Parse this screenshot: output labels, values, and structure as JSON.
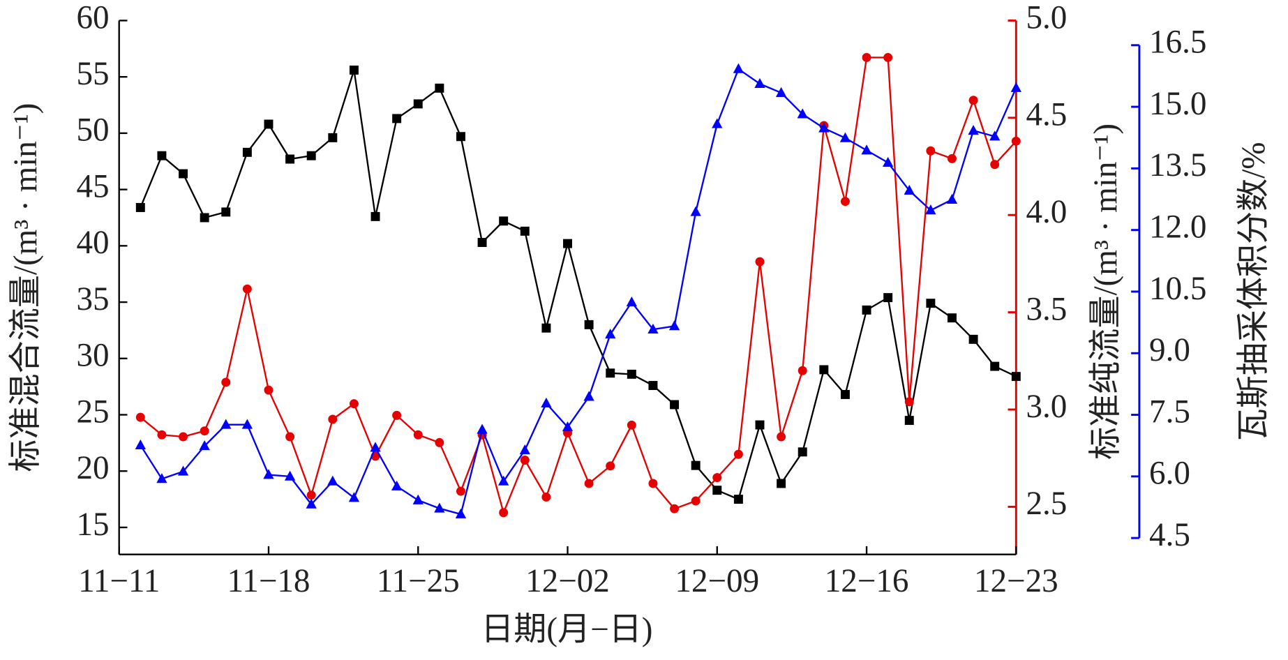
{
  "chart_data": {
    "type": "line",
    "x_label": "日期(月−日)",
    "y_label": "标准混合流量/(m³ · min⁻¹)",
    "y2_label": "标准纯流量/(m³ · min⁻¹)",
    "y3_label": "瓦斯抽采体积分数/%",
    "x": [
      "11−12",
      "11−13",
      "11−14",
      "11−15",
      "11−16",
      "11−17",
      "11−18",
      "11−19",
      "11−20",
      "11−21",
      "11−22",
      "11−23",
      "11−24",
      "11−25",
      "11−26",
      "11−27",
      "11−28",
      "11−29",
      "11−30",
      "12−01",
      "12−02",
      "12−03",
      "12−04",
      "12−05",
      "12−06",
      "12−07",
      "12−08",
      "12−09",
      "12−10",
      "12−11",
      "12−12",
      "12−13",
      "12−14",
      "12−15",
      "12−16",
      "12−17",
      "12−18",
      "12−19",
      "12−20",
      "12−21",
      "12−22",
      "12−23"
    ],
    "xlim": [
      "11−11",
      "12−23"
    ],
    "xticks": [
      "11−11",
      "11−18",
      "11−25",
      "12−02",
      "12−09",
      "12−16",
      "12−23"
    ],
    "ylim": [
      12.6,
      60
    ],
    "yticks": [
      15,
      20,
      25,
      30,
      35,
      40,
      45,
      50,
      55,
      60
    ],
    "y2lim": [
      2.255,
      5.0
    ],
    "y2ticks": [
      2.5,
      {
        "value": 3,
        "label": "3.0"
      },
      3.5,
      {
        "value": 4,
        "label": "4.0"
      },
      4.5,
      {
        "value": 5,
        "label": "5.0"
      }
    ],
    "y3lim": [
      4.5,
      16.5
    ],
    "y3ticks": [
      4.5,
      {
        "value": 6,
        "label": "6.0"
      },
      7.5,
      {
        "value": 9,
        "label": "9.0"
      },
      10.5,
      {
        "value": 12,
        "label": "12.0"
      },
      13.5,
      {
        "value": 15,
        "label": "15.0"
      },
      16.5
    ],
    "y2_color": "#e60000",
    "y3_color": "#0000ff",
    "series": [
      {
        "color": "#000000",
        "marker": "square",
        "values": [
          43.4,
          48.0,
          46.4,
          42.5,
          43.0,
          48.3,
          50.8,
          47.7,
          48.0,
          49.6,
          55.6,
          42.6,
          51.3,
          52.6,
          54.0,
          49.7,
          40.3,
          42.2,
          41.3,
          32.7,
          40.2,
          33.0,
          28.7,
          28.6,
          27.6,
          25.9,
          20.5,
          18.3,
          17.5,
          24.1,
          18.9,
          21.7,
          29.0,
          26.8,
          34.3,
          35.4,
          24.5,
          34.9,
          33.6,
          31.7,
          29.3,
          28.4
        ]
      },
      {
        "color": "#e60000",
        "marker": "circle",
        "axis": "y2",
        "values": [
          2.96,
          2.87,
          2.86,
          2.89,
          3.14,
          3.62,
          3.1,
          2.86,
          2.56,
          2.95,
          3.03,
          2.76,
          2.97,
          2.87,
          2.83,
          2.58,
          2.87,
          2.47,
          2.74,
          2.55,
          2.88,
          2.62,
          2.71,
          2.92,
          2.62,
          2.49,
          2.53,
          2.65,
          2.77,
          3.76,
          2.86,
          3.2,
          4.46,
          4.07,
          4.81,
          4.81,
          3.04,
          4.33,
          4.29,
          4.59,
          4.26,
          4.38
        ]
      },
      {
        "color": "#0000ff",
        "marker": "triangle",
        "axis": "y3",
        "values": [
          6.76,
          5.94,
          6.12,
          6.74,
          7.26,
          7.26,
          6.04,
          6.0,
          5.32,
          5.88,
          5.48,
          6.7,
          5.76,
          5.42,
          5.22,
          5.08,
          7.14,
          5.88,
          6.64,
          7.78,
          7.2,
          7.94,
          9.46,
          10.24,
          9.58,
          9.66,
          12.44,
          14.58,
          15.92,
          15.56,
          15.34,
          14.82,
          14.48,
          14.24,
          13.94,
          13.64,
          12.96,
          12.48,
          12.74,
          14.42,
          14.28,
          15.46
        ]
      }
    ]
  }
}
